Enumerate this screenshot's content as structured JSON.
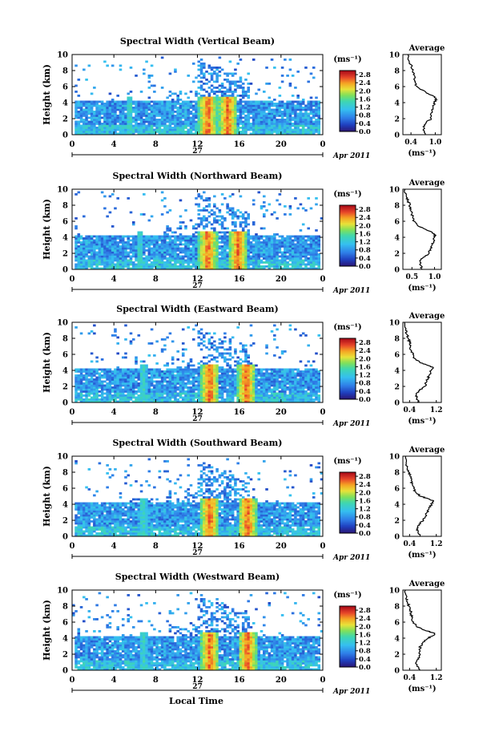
{
  "figure": {
    "xlabel": "Local Time",
    "date_label": "Apr 2011",
    "day_label": "27",
    "colorbar_unit": "(ms⁻¹)",
    "avg_title": "Average",
    "avg_unit": "(ms⁻¹)",
    "ylabel": "Height (km)"
  },
  "chart_data": [
    {
      "type": "heatmap",
      "title": "Spectral Width (Vertical Beam)",
      "ylabel": "Height (km)",
      "xlabel": "Local Time",
      "x_ticks": [
        "0",
        "4",
        "8",
        "12",
        "16",
        "20",
        "0"
      ],
      "x_range": [
        0,
        24
      ],
      "y_ticks": [
        "0",
        "2",
        "4",
        "6",
        "8",
        "10"
      ],
      "y_range": [
        0,
        10
      ],
      "colorbar": {
        "ticks": [
          "0.0",
          "0.4",
          "0.8",
          "1.2",
          "1.6",
          "2.0",
          "2.4",
          "2.8"
        ],
        "range": [
          0,
          3.0
        ]
      },
      "convective_bands_hours": [
        5.5,
        13.0,
        14.9
      ],
      "average_profile": {
        "x_ticks": [
          "0.4",
          "1.0"
        ],
        "x_range": [
          0.2,
          1.15
        ],
        "y_range": [
          0,
          10
        ],
        "width": [
          0.75,
          0.72,
          0.7,
          0.78,
          0.9,
          0.88,
          0.92,
          0.95,
          0.98,
          1.0,
          1.02,
          0.96,
          0.78,
          0.55,
          0.5,
          0.48,
          0.46,
          0.44,
          0.42,
          0.36,
          0.32
        ],
        "height": [
          0,
          0.5,
          1.0,
          1.5,
          2.0,
          2.5,
          3.0,
          3.5,
          4.0,
          4.3,
          4.5,
          4.8,
          5.2,
          6.0,
          6.5,
          7.0,
          7.5,
          8.0,
          8.5,
          9.0,
          10.0
        ]
      }
    },
    {
      "type": "heatmap",
      "title": "Spectral Width (Northward Beam)",
      "ylabel": "Height (km)",
      "xlabel": "Local Time",
      "x_ticks": [
        "0",
        "4",
        "8",
        "12",
        "16",
        "20",
        "0"
      ],
      "x_range": [
        0,
        24
      ],
      "y_ticks": [
        "0",
        "2",
        "4",
        "6",
        "8",
        "10"
      ],
      "y_range": [
        0,
        10
      ],
      "colorbar": {
        "ticks": [
          "0.0",
          "0.4",
          "0.8",
          "1.2",
          "1.6",
          "2.0",
          "2.4",
          "2.8"
        ],
        "range": [
          0,
          3.0
        ]
      },
      "convective_bands_hours": [
        6.5,
        13.0,
        15.9
      ],
      "average_profile": {
        "x_ticks": [
          "0.5",
          "1.0"
        ],
        "x_range": [
          0.3,
          1.15
        ],
        "y_range": [
          0,
          10
        ],
        "width": [
          0.72,
          0.7,
          0.68,
          0.75,
          0.88,
          0.9,
          0.94,
          0.98,
          1.0,
          1.02,
          0.95,
          0.8,
          0.62,
          0.55,
          0.52,
          0.5,
          0.48,
          0.45,
          0.42,
          0.38,
          0.35
        ],
        "height": [
          0,
          0.5,
          1.0,
          1.5,
          2.0,
          2.5,
          3.0,
          3.5,
          4.0,
          4.3,
          4.6,
          5.0,
          5.5,
          6.0,
          6.5,
          7.0,
          7.5,
          8.0,
          8.5,
          9.0,
          10.0
        ]
      }
    },
    {
      "type": "heatmap",
      "title": "Spectral Width (Eastward Beam)",
      "ylabel": "Height (km)",
      "xlabel": "Local Time",
      "x_ticks": [
        "0",
        "4",
        "8",
        "12",
        "16",
        "20",
        "0"
      ],
      "x_range": [
        0,
        24
      ],
      "y_ticks": [
        "0",
        "2",
        "4",
        "6",
        "8",
        "10"
      ],
      "y_range": [
        0,
        10
      ],
      "colorbar": {
        "ticks": [
          "0.0",
          "0.4",
          "0.8",
          "1.2",
          "1.6",
          "2.0",
          "2.4",
          "2.8"
        ],
        "range": [
          0,
          3.0
        ]
      },
      "convective_bands_hours": [
        6.8,
        13.2,
        16.7
      ],
      "average_profile": {
        "x_ticks": [
          "0.4",
          "1.2"
        ],
        "x_range": [
          0.2,
          1.35
        ],
        "y_range": [
          0,
          10
        ],
        "width": [
          0.7,
          0.62,
          0.6,
          0.7,
          0.85,
          0.9,
          0.95,
          1.0,
          1.05,
          1.1,
          0.9,
          0.7,
          0.55,
          0.5,
          0.45,
          0.42,
          0.4,
          0.36,
          0.32,
          0.28,
          0.25
        ],
        "height": [
          0,
          0.5,
          1.0,
          1.5,
          2.0,
          2.5,
          3.0,
          3.5,
          4.0,
          4.4,
          4.7,
          5.0,
          5.5,
          6.0,
          6.5,
          7.0,
          7.5,
          8.0,
          8.5,
          9.0,
          10.0
        ]
      }
    },
    {
      "type": "heatmap",
      "title": "Spectral Width (Southward Beam)",
      "ylabel": "Height (km)",
      "xlabel": "Local Time",
      "x_ticks": [
        "0",
        "4",
        "8",
        "12",
        "16",
        "20",
        "0"
      ],
      "x_range": [
        0,
        24
      ],
      "y_ticks": [
        "0",
        "2",
        "4",
        "6",
        "8",
        "10"
      ],
      "y_range": [
        0,
        10
      ],
      "colorbar": {
        "ticks": [
          "0.0",
          "0.4",
          "0.8",
          "1.2",
          "1.6",
          "2.0",
          "2.4",
          "2.8"
        ],
        "range": [
          0,
          3.0
        ]
      },
      "convective_bands_hours": [
        6.8,
        13.2,
        16.8
      ],
      "average_profile": {
        "x_ticks": [
          "0.4",
          "1.2"
        ],
        "x_range": [
          0.2,
          1.35
        ],
        "y_range": [
          0,
          10
        ],
        "width": [
          0.72,
          0.65,
          0.62,
          0.68,
          0.82,
          0.88,
          0.92,
          0.98,
          1.05,
          1.12,
          0.95,
          0.72,
          0.58,
          0.52,
          0.48,
          0.45,
          0.42,
          0.38,
          0.33,
          0.3,
          0.28
        ],
        "height": [
          0,
          0.5,
          1.0,
          1.5,
          2.0,
          2.5,
          3.0,
          3.5,
          4.0,
          4.4,
          4.7,
          5.0,
          5.5,
          6.0,
          6.5,
          7.0,
          7.5,
          8.0,
          8.5,
          9.0,
          10.0
        ]
      }
    },
    {
      "type": "heatmap",
      "title": "Spectral Width (Westward Beam)",
      "ylabel": "Height (km)",
      "xlabel": "Local Time",
      "x_ticks": [
        "0",
        "4",
        "8",
        "12",
        "16",
        "20",
        "0"
      ],
      "x_range": [
        0,
        24
      ],
      "y_ticks": [
        "0",
        "2",
        "4",
        "6",
        "8",
        "10"
      ],
      "y_range": [
        0,
        10
      ],
      "colorbar": {
        "ticks": [
          "0.0",
          "0.4",
          "0.8",
          "1.2",
          "1.6",
          "2.0",
          "2.4",
          "2.8"
        ],
        "range": [
          0,
          3.0
        ]
      },
      "convective_bands_hours": [
        6.8,
        13.2,
        16.8
      ],
      "average_profile": {
        "x_ticks": [
          "0.4",
          "1.2"
        ],
        "x_range": [
          0.2,
          1.35
        ],
        "y_range": [
          0,
          10
        ],
        "width": [
          0.68,
          0.62,
          0.6,
          0.65,
          0.72,
          0.7,
          0.72,
          0.8,
          0.95,
          1.1,
          1.15,
          0.85,
          0.6,
          0.52,
          0.48,
          0.45,
          0.42,
          0.38,
          0.34,
          0.3,
          0.28
        ],
        "height": [
          0,
          0.5,
          1.0,
          1.5,
          2.0,
          2.5,
          3.0,
          3.5,
          4.0,
          4.3,
          4.6,
          5.0,
          5.5,
          6.0,
          6.5,
          7.0,
          7.5,
          8.0,
          8.5,
          9.0,
          10.0
        ]
      }
    }
  ]
}
